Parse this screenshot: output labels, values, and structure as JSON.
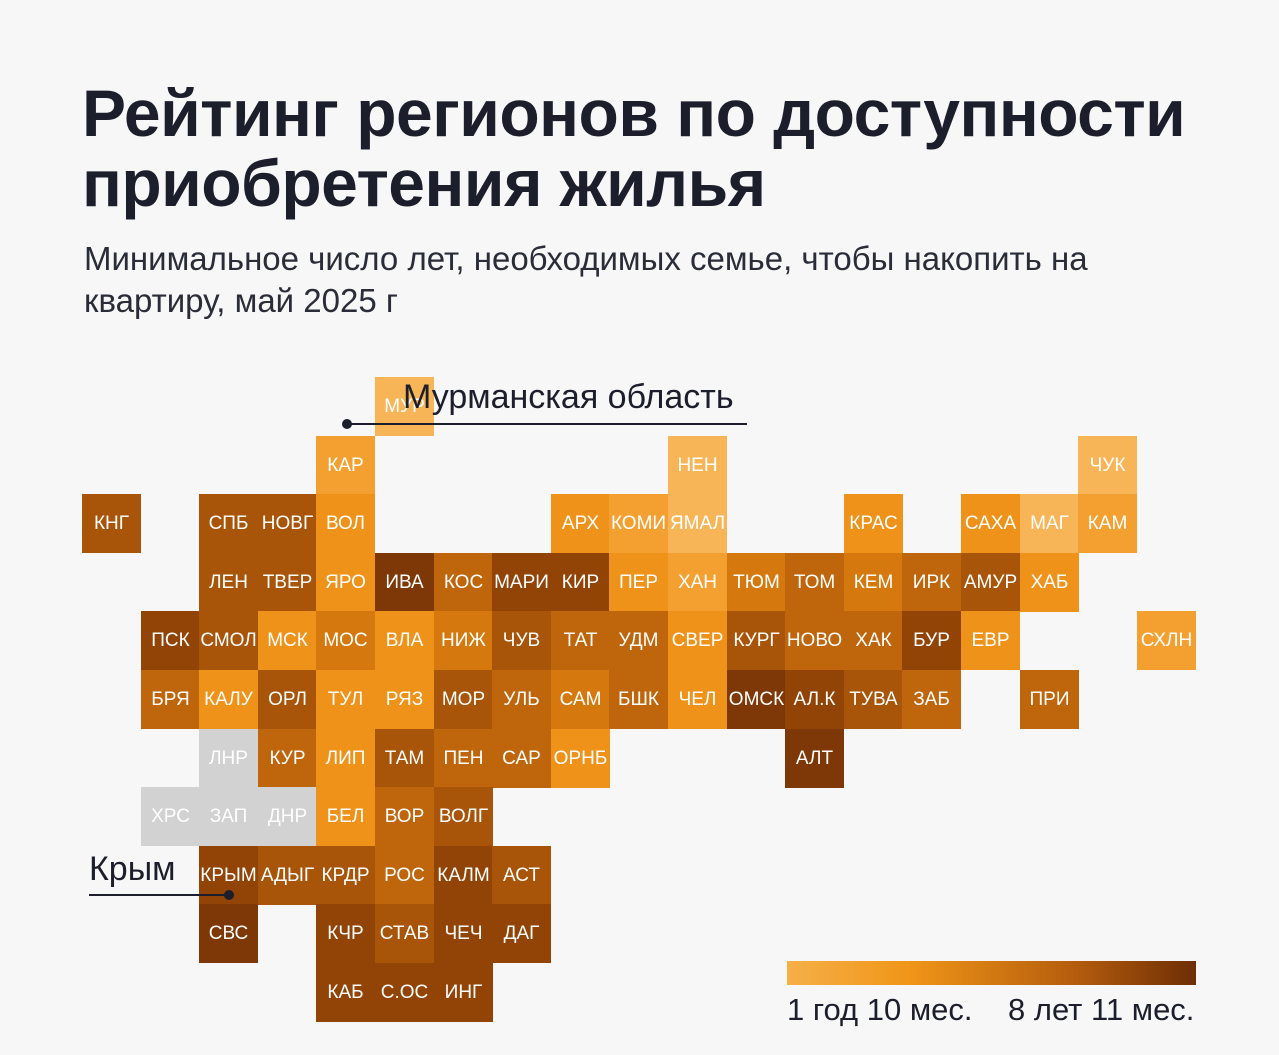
{
  "header": {
    "title": "Рейтинг регионов по доступности приобретения жилья",
    "subtitle": "Минимальное число лет, необходимых семье, чтобы накопить на квартиру, май 2025 г"
  },
  "callouts": {
    "murmansk": "Мурманская область",
    "crimea": "Крым"
  },
  "legend": {
    "min_label": "1 год 10 мес.",
    "max_label": "8 лет 11 мес.",
    "colors": [
      "#f5b048",
      "#f09518",
      "#b55d0d",
      "#6e2e05"
    ]
  },
  "chart_data": {
    "type": "heatmap",
    "description_scale": "tile map of Russian regions; color encodes years needed (light = fewer, dark = more)",
    "nodata_color": "#d2d2d2",
    "color_scale": {
      "1": "#f7b558",
      "2": "#f4a030",
      "3": "#ee921a",
      "4": "#d5790e",
      "5": "#bf650b",
      "6": "#a85409",
      "7": "#924407",
      "8": "#7e3706"
    },
    "rows": [
      [
        [
          "МУР",
          5,
          1
        ]
      ],
      [
        [
          "КАР",
          4,
          2
        ],
        [
          "НЕН",
          10,
          1
        ],
        [
          "ЧУК",
          17,
          1
        ]
      ],
      [
        [
          "КНГ",
          0,
          6
        ],
        [
          "СПБ",
          2,
          6
        ],
        [
          "НОВГ",
          3,
          6
        ],
        [
          "ВОЛ",
          4,
          3
        ],
        [
          "АРХ",
          8,
          3
        ],
        [
          "КОМИ",
          9,
          2
        ],
        [
          "ЯМАЛ",
          10,
          1
        ],
        [
          "КРАС",
          13,
          3
        ],
        [
          "САХА",
          15,
          3
        ],
        [
          "МАГ",
          16,
          1
        ],
        [
          "КАМ",
          17,
          2
        ]
      ],
      [
        [
          "ЛЕН",
          2,
          6
        ],
        [
          "ТВЕР",
          3,
          6
        ],
        [
          "ЯРО",
          4,
          3
        ],
        [
          "ИВА",
          5,
          8
        ],
        [
          "КОС",
          6,
          5
        ],
        [
          "МАРИ",
          7,
          7
        ],
        [
          "КИР",
          8,
          7
        ],
        [
          "ПЕР",
          9,
          3
        ],
        [
          "ХАН",
          10,
          2
        ],
        [
          "ТЮМ",
          11,
          4
        ],
        [
          "ТОМ",
          12,
          5
        ],
        [
          "КЕМ",
          13,
          4
        ],
        [
          "ИРК",
          14,
          5
        ],
        [
          "АМУР",
          15,
          6
        ],
        [
          "ХАБ",
          16,
          3
        ]
      ],
      [
        [
          "ПСК",
          1,
          7
        ],
        [
          "СМОЛ",
          2,
          6
        ],
        [
          "МСК",
          3,
          3
        ],
        [
          "МОС",
          4,
          4
        ],
        [
          "ВЛА",
          5,
          3
        ],
        [
          "НИЖ",
          6,
          4
        ],
        [
          "ЧУВ",
          7,
          6
        ],
        [
          "ТАТ",
          8,
          5
        ],
        [
          "УДМ",
          9,
          5
        ],
        [
          "СВЕР",
          10,
          3
        ],
        [
          "КУРГ",
          11,
          6
        ],
        [
          "НОВО",
          12,
          5
        ],
        [
          "ХАК",
          13,
          5
        ],
        [
          "БУР",
          14,
          7
        ],
        [
          "ЕВР",
          15,
          3
        ],
        [
          "СХЛН",
          18,
          2
        ]
      ],
      [
        [
          "БРЯ",
          1,
          5
        ],
        [
          "КАЛУ",
          2,
          3
        ],
        [
          "ОРЛ",
          3,
          6
        ],
        [
          "ТУЛ",
          4,
          3
        ],
        [
          "РЯЗ",
          5,
          3
        ],
        [
          "МОР",
          6,
          6
        ],
        [
          "УЛЬ",
          7,
          5
        ],
        [
          "САМ",
          8,
          4
        ],
        [
          "БШК",
          9,
          5
        ],
        [
          "ЧЕЛ",
          10,
          3
        ],
        [
          "ОМСК",
          11,
          8
        ],
        [
          "АЛ.К",
          12,
          7
        ],
        [
          "ТУВА",
          13,
          6
        ],
        [
          "ЗАБ",
          14,
          5
        ],
        [
          "ПРИ",
          16,
          5
        ]
      ],
      [
        [
          "ЛНР",
          2,
          0
        ],
        [
          "КУР",
          3,
          5
        ],
        [
          "ЛИП",
          4,
          3
        ],
        [
          "ТАМ",
          5,
          6
        ],
        [
          "ПЕН",
          6,
          5
        ],
        [
          "САР",
          7,
          5
        ],
        [
          "ОРНБ",
          8,
          3
        ],
        [
          "АЛТ",
          12,
          8
        ]
      ],
      [
        [
          "ХРС",
          1,
          0
        ],
        [
          "ЗАП",
          2,
          0
        ],
        [
          "ДНР",
          3,
          0
        ],
        [
          "БЕЛ",
          4,
          3
        ],
        [
          "ВОР",
          5,
          5
        ],
        [
          "ВОЛГ",
          6,
          6
        ]
      ],
      [
        [
          "КРЫМ",
          2,
          7
        ],
        [
          "АДЫГ",
          3,
          6
        ],
        [
          "КРДР",
          4,
          6
        ],
        [
          "РОС",
          5,
          5
        ],
        [
          "КАЛМ",
          6,
          7
        ],
        [
          "АСТ",
          7,
          6
        ]
      ],
      [
        [
          "СВС",
          2,
          8
        ],
        [
          "КЧР",
          4,
          7
        ],
        [
          "СТАВ",
          5,
          6
        ],
        [
          "ЧЕЧ",
          6,
          7
        ],
        [
          "ДАГ",
          7,
          7
        ]
      ],
      [
        [
          "КАБ",
          4,
          7
        ],
        [
          "С.ОС",
          5,
          7
        ],
        [
          "ИНГ",
          6,
          7
        ]
      ]
    ]
  }
}
